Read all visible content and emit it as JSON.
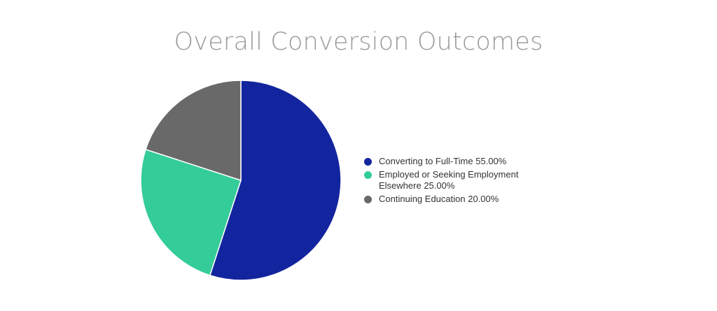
{
  "chart_data": {
    "type": "pie",
    "title": "Overall Conversion Outcomes",
    "legend_position": "right",
    "slices": [
      {
        "label": "Converting to Full-Time",
        "value": 55.0,
        "display": "55.00%",
        "color": "#13259e"
      },
      {
        "label": "Employed or Seeking Employment Elsewhere",
        "value": 25.0,
        "display": "25.00%",
        "color": "#34cc98"
      },
      {
        "label": "Continuing Education",
        "value": 20.0,
        "display": "20.00%",
        "color": "#696969"
      }
    ]
  }
}
